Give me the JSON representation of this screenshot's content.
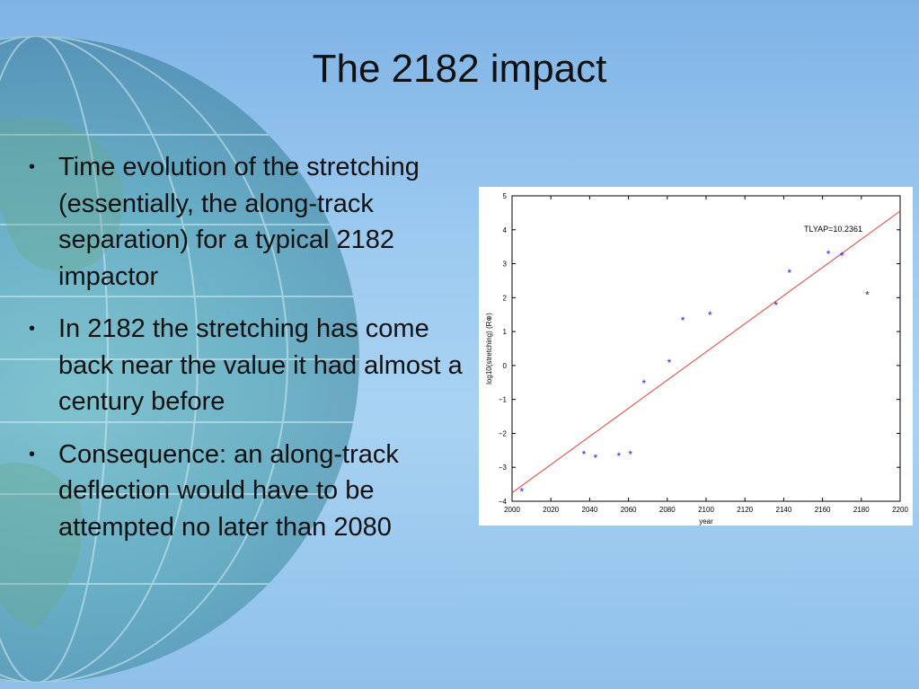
{
  "slide": {
    "title": "The 2182 impact",
    "bullets": [
      "Time evolution of the stretching (essentially, the along-track separation) for a typical 2182 impactor",
      "In 2182 the stretching has come back near the value it had almost a century before",
      "Consequence: an along-track deflection would have to be attempted no later than 2080"
    ],
    "bullet_glyph": "•"
  },
  "chart_data": {
    "type": "scatter",
    "xlabel": "year",
    "ylabel": "log10(stretching) (R⊕)",
    "annotation": "TLYAP=10.2361",
    "xlim": [
      2000,
      2200
    ],
    "ylim": [
      -4,
      5
    ],
    "xticks": [
      2000,
      2020,
      2040,
      2060,
      2080,
      2100,
      2120,
      2140,
      2160,
      2180,
      2200
    ],
    "yticks": [
      -4,
      -3,
      -2,
      -1,
      0,
      1,
      2,
      3,
      4,
      5
    ],
    "series": [
      {
        "marker": "*",
        "color": "#1a1aff",
        "points": [
          [
            2005,
            -3.7
          ],
          [
            2037,
            -2.6
          ],
          [
            2043,
            -2.7
          ],
          [
            2055,
            -2.65
          ],
          [
            2061,
            -2.6
          ],
          [
            2068,
            -0.5
          ],
          [
            2081,
            0.1
          ],
          [
            2088,
            1.35
          ],
          [
            2102,
            1.5
          ],
          [
            2136,
            1.8
          ],
          [
            2143,
            2.75
          ],
          [
            2163,
            3.3
          ],
          [
            2170,
            3.25
          ],
          [
            2183,
            2.1
          ]
        ]
      }
    ],
    "fit_line": {
      "color": "#e8403a",
      "from": [
        2000,
        -3.75
      ],
      "to": [
        2200,
        4.55
      ]
    }
  }
}
